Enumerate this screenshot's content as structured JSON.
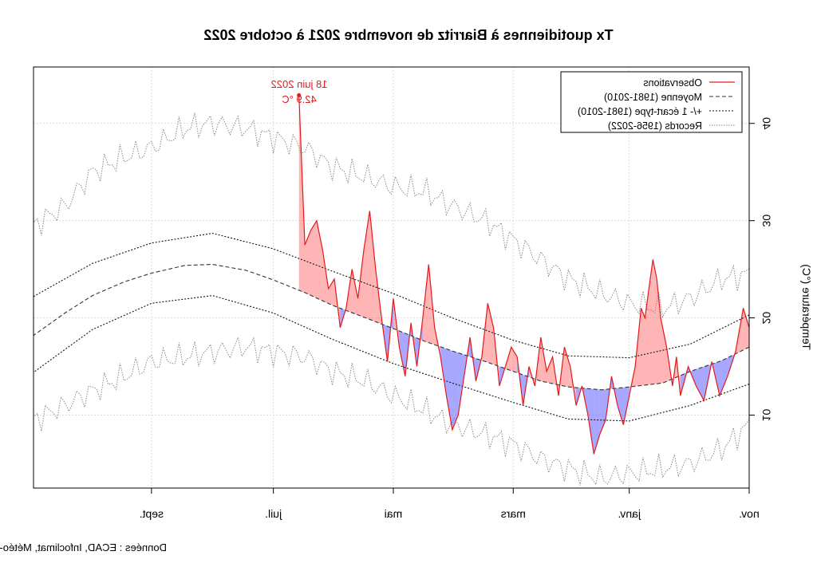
{
  "chart_data": {
    "type": "line",
    "title": "Tx quotidiennes à Biarritz de novembre 2021 à octobre 2022",
    "ylabel": "Température (°C)",
    "xlabel": "",
    "source": "Données : ECAD, Infoclimat, Météo-France",
    "x_tick_labels": [
      "nov.",
      "janv.",
      "mars",
      "mai",
      "juil.",
      "sept."
    ],
    "y_ticks": [
      10,
      20,
      30,
      40
    ],
    "ylim": [
      2.5,
      45.8
    ],
    "grid": true,
    "legend": {
      "position": "top-right",
      "entries": [
        "Observations",
        "Moyenne (1981-2010)",
        "+/- 1 écart-type (1981-2010)",
        "Records (1956-2022)"
      ],
      "colors": [
        "#e31a1c",
        "#333333",
        "#111111",
        "#888888"
      ]
    },
    "annotation": {
      "line1": "18 juin 2022",
      "line2": "42.9 °C",
      "x": "2022-06-18",
      "y": 42.9
    },
    "colors": {
      "obs": "#e31a1c",
      "above_fill": "#ff5a5a",
      "below_fill": "#5050ff"
    },
    "mean_series": {
      "name": "Moyenne (1981-2010)",
      "x": [
        "2021-11-01",
        "2021-11-15",
        "2021-12-01",
        "2021-12-15",
        "2022-01-01",
        "2022-01-15",
        "2022-02-01",
        "2022-02-15",
        "2022-03-01",
        "2022-03-15",
        "2022-04-01",
        "2022-04-15",
        "2022-05-01",
        "2022-05-15",
        "2022-06-01",
        "2022-06-15",
        "2022-07-01",
        "2022-07-15",
        "2022-08-01",
        "2022-08-15",
        "2022-09-01",
        "2022-09-15",
        "2022-10-01",
        "2022-10-15",
        "2022-10-31"
      ],
      "y": [
        17.0,
        15.6,
        14.5,
        13.3,
        12.9,
        12.6,
        12.9,
        13.5,
        14.5,
        15.5,
        16.6,
        17.6,
        18.9,
        20.0,
        21.3,
        22.6,
        23.9,
        24.9,
        25.5,
        25.4,
        24.6,
        23.7,
        22.3,
        20.5,
        18.2
      ]
    },
    "sd_upper_series": {
      "name": "+1 écart-type (1981-2010)",
      "x": [
        "2021-11-01",
        "2021-12-01",
        "2022-01-01",
        "2022-02-01",
        "2022-03-01",
        "2022-04-01",
        "2022-05-01",
        "2022-06-01",
        "2022-07-01",
        "2022-08-01",
        "2022-09-01",
        "2022-10-01",
        "2022-10-31"
      ],
      "y": [
        20.3,
        17.3,
        15.9,
        16.1,
        17.7,
        20.0,
        22.5,
        24.8,
        27.1,
        28.7,
        27.7,
        25.6,
        22.2
      ]
    },
    "sd_lower_series": {
      "name": "-1 écart-type (1981-2010)",
      "x": [
        "2021-11-01",
        "2021-12-01",
        "2022-01-01",
        "2022-02-01",
        "2022-03-01",
        "2022-04-01",
        "2022-05-01",
        "2022-06-01",
        "2022-07-01",
        "2022-08-01",
        "2022-09-01",
        "2022-10-01",
        "2022-10-31"
      ],
      "y": [
        13.2,
        11.0,
        9.4,
        9.6,
        11.3,
        13.3,
        15.3,
        17.8,
        20.5,
        22.3,
        21.5,
        18.8,
        14.4
      ]
    },
    "record_max_series": {
      "name": "Records max (1956-2022)",
      "x": [
        "2021-11-01",
        "2021-11-15",
        "2021-12-01",
        "2021-12-15",
        "2022-01-01",
        "2022-01-15",
        "2022-02-01",
        "2022-02-15",
        "2022-03-01",
        "2022-03-15",
        "2022-04-01",
        "2022-04-15",
        "2022-05-01",
        "2022-05-15",
        "2022-06-01",
        "2022-06-15",
        "2022-07-01",
        "2022-07-15",
        "2022-08-01",
        "2022-08-15",
        "2022-09-01",
        "2022-09-15",
        "2022-10-01",
        "2022-10-15",
        "2022-10-31"
      ],
      "y": [
        24.5,
        24.0,
        22.0,
        21.0,
        21.5,
        22.5,
        24.0,
        26.0,
        28.0,
        30.0,
        31.5,
        33.0,
        33.5,
        34.5,
        35.5,
        37.5,
        38.5,
        39.5,
        40.0,
        39.5,
        37.5,
        36.5,
        35.0,
        31.5,
        29.5
      ]
    },
    "record_min_series": {
      "name": "Records min (1956-2022)",
      "x": [
        "2021-11-01",
        "2021-11-15",
        "2021-12-01",
        "2021-12-15",
        "2022-01-01",
        "2022-01-15",
        "2022-02-01",
        "2022-02-15",
        "2022-03-01",
        "2022-03-15",
        "2022-04-01",
        "2022-04-15",
        "2022-05-01",
        "2022-05-15",
        "2022-06-01",
        "2022-06-15",
        "2022-07-01",
        "2022-07-15",
        "2022-08-01",
        "2022-08-15",
        "2022-09-01",
        "2022-09-15",
        "2022-10-01",
        "2022-10-15",
        "2022-10-31"
      ],
      "y": [
        9.0,
        6.5,
        5.0,
        4.5,
        4.0,
        3.5,
        4.5,
        5.5,
        7.0,
        8.0,
        9.0,
        10.5,
        12.0,
        13.5,
        14.5,
        16.0,
        16.5,
        17.0,
        16.5,
        16.0,
        15.5,
        14.0,
        12.5,
        11.0,
        9.5
      ]
    },
    "observations": {
      "name": "Observations",
      "x": [
        "2021-11-01",
        "2021-11-04",
        "2021-11-08",
        "2021-11-12",
        "2021-11-16",
        "2021-11-20",
        "2021-11-24",
        "2021-11-28",
        "2021-12-02",
        "2021-12-06",
        "2021-12-08",
        "2021-12-10",
        "2021-12-13",
        "2021-12-16",
        "2021-12-18",
        "2021-12-20",
        "2021-12-22",
        "2021-12-24",
        "2021-12-26",
        "2021-12-29",
        "2022-01-01",
        "2022-01-04",
        "2022-01-07",
        "2022-01-10",
        "2022-01-13",
        "2022-01-16",
        "2022-01-19",
        "2022-01-22",
        "2022-01-25",
        "2022-01-28",
        "2022-01-31",
        "2022-02-03",
        "2022-02-06",
        "2022-02-09",
        "2022-02-12",
        "2022-02-15",
        "2022-02-18",
        "2022-02-21",
        "2022-02-24",
        "2022-02-27",
        "2022-03-02",
        "2022-03-05",
        "2022-03-08",
        "2022-03-11",
        "2022-03-14",
        "2022-03-17",
        "2022-03-20",
        "2022-03-23",
        "2022-03-26",
        "2022-03-29",
        "2022-04-01",
        "2022-04-04",
        "2022-04-07",
        "2022-04-10",
        "2022-04-13",
        "2022-04-16",
        "2022-04-19",
        "2022-04-22",
        "2022-04-25",
        "2022-04-28",
        "2022-05-01",
        "2022-05-04",
        "2022-05-07",
        "2022-05-10",
        "2022-05-13",
        "2022-05-16",
        "2022-05-19",
        "2022-05-22",
        "2022-05-25",
        "2022-05-28",
        "2022-05-31",
        "2022-06-03",
        "2022-06-06",
        "2022-06-09",
        "2022-06-12",
        "2022-06-15",
        "2022-06-18"
      ],
      "y": [
        19.0,
        21.0,
        16.5,
        14.0,
        12.0,
        15.5,
        11.5,
        13.0,
        15.0,
        12.0,
        16.0,
        13.0,
        17.0,
        20.0,
        24.0,
        26.0,
        23.0,
        20.0,
        21.0,
        15.0,
        12.0,
        9.0,
        11.0,
        14.0,
        9.5,
        8.0,
        6.0,
        10.0,
        13.0,
        11.0,
        15.0,
        17.0,
        12.0,
        16.0,
        14.5,
        18.0,
        13.0,
        15.0,
        11.0,
        16.0,
        17.0,
        15.0,
        13.0,
        19.0,
        21.5,
        16.0,
        13.5,
        18.0,
        14.0,
        10.0,
        8.5,
        12.0,
        16.0,
        19.0,
        25.5,
        20.0,
        15.0,
        19.5,
        14.0,
        17.0,
        22.0,
        15.5,
        20.0,
        25.0,
        31.0,
        27.0,
        22.0,
        25.0,
        21.0,
        19.0,
        24.0,
        23.0,
        27.0,
        30.0,
        29.0,
        27.5,
        42.9
      ]
    }
  }
}
